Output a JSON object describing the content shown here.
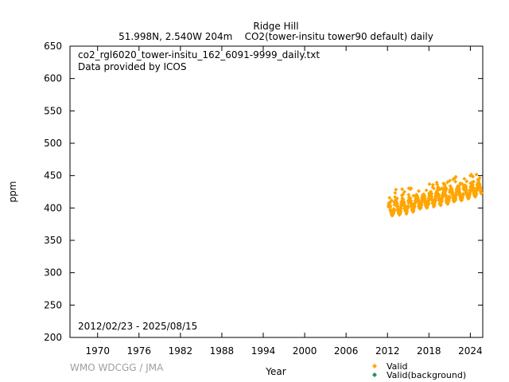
{
  "chart_data": {
    "type": "scatter",
    "title": "Ridge Hill",
    "subtitle": "51.998N, 2.540W 204m    CO2(tower-insitu tower90 default) daily",
    "file_label": "co2_rgl6020_tower-insitu_162_6091-9999_daily.txt",
    "provider_label": "Data provided by ICOS",
    "date_range_label": "2012/02/23 - 2025/08/15",
    "xlabel": "Year",
    "ylabel": "ppm",
    "xlim": [
      1966,
      2025.8
    ],
    "ylim": [
      200,
      650
    ],
    "x_ticks": [
      "1970",
      "1976",
      "1982",
      "1988",
      "1994",
      "2000",
      "2006",
      "2012",
      "2018",
      "2024"
    ],
    "y_ticks": [
      "200",
      "250",
      "300",
      "350",
      "400",
      "450",
      "500",
      "550",
      "600",
      "650"
    ],
    "grid": false,
    "legend_position": "bottom-right",
    "series": [
      {
        "name": "Valid",
        "color": "#ffa500",
        "marker": "diamond",
        "x_start": "2012/02/23",
        "x_end": "2025/08/15",
        "annual_summary": [
          {
            "year": 2012,
            "mean": 398,
            "min": 385,
            "max": 420
          },
          {
            "year": 2013,
            "mean": 401,
            "min": 386,
            "max": 430
          },
          {
            "year": 2014,
            "mean": 403,
            "min": 388,
            "max": 437
          },
          {
            "year": 2015,
            "mean": 406,
            "min": 392,
            "max": 436
          },
          {
            "year": 2016,
            "mean": 409,
            "min": 395,
            "max": 432
          },
          {
            "year": 2017,
            "mean": 411,
            "min": 398,
            "max": 433
          },
          {
            "year": 2018,
            "mean": 414,
            "min": 400,
            "max": 437
          },
          {
            "year": 2019,
            "mean": 416,
            "min": 402,
            "max": 440
          },
          {
            "year": 2020,
            "mean": 418,
            "min": 404,
            "max": 441
          },
          {
            "year": 2021,
            "mean": 420,
            "min": 407,
            "max": 449
          },
          {
            "year": 2022,
            "mean": 422,
            "min": 409,
            "max": 445
          },
          {
            "year": 2023,
            "mean": 425,
            "min": 412,
            "max": 447
          },
          {
            "year": 2024,
            "mean": 428,
            "min": 415,
            "max": 452
          },
          {
            "year": 2025,
            "mean": 430,
            "min": 418,
            "max": 452
          }
        ]
      },
      {
        "name": "Valid(background)",
        "color": "#2e8b57",
        "marker": "diamond",
        "annual_summary": []
      }
    ]
  },
  "footer": {
    "credit": "WMO WDCGG / JMA"
  }
}
